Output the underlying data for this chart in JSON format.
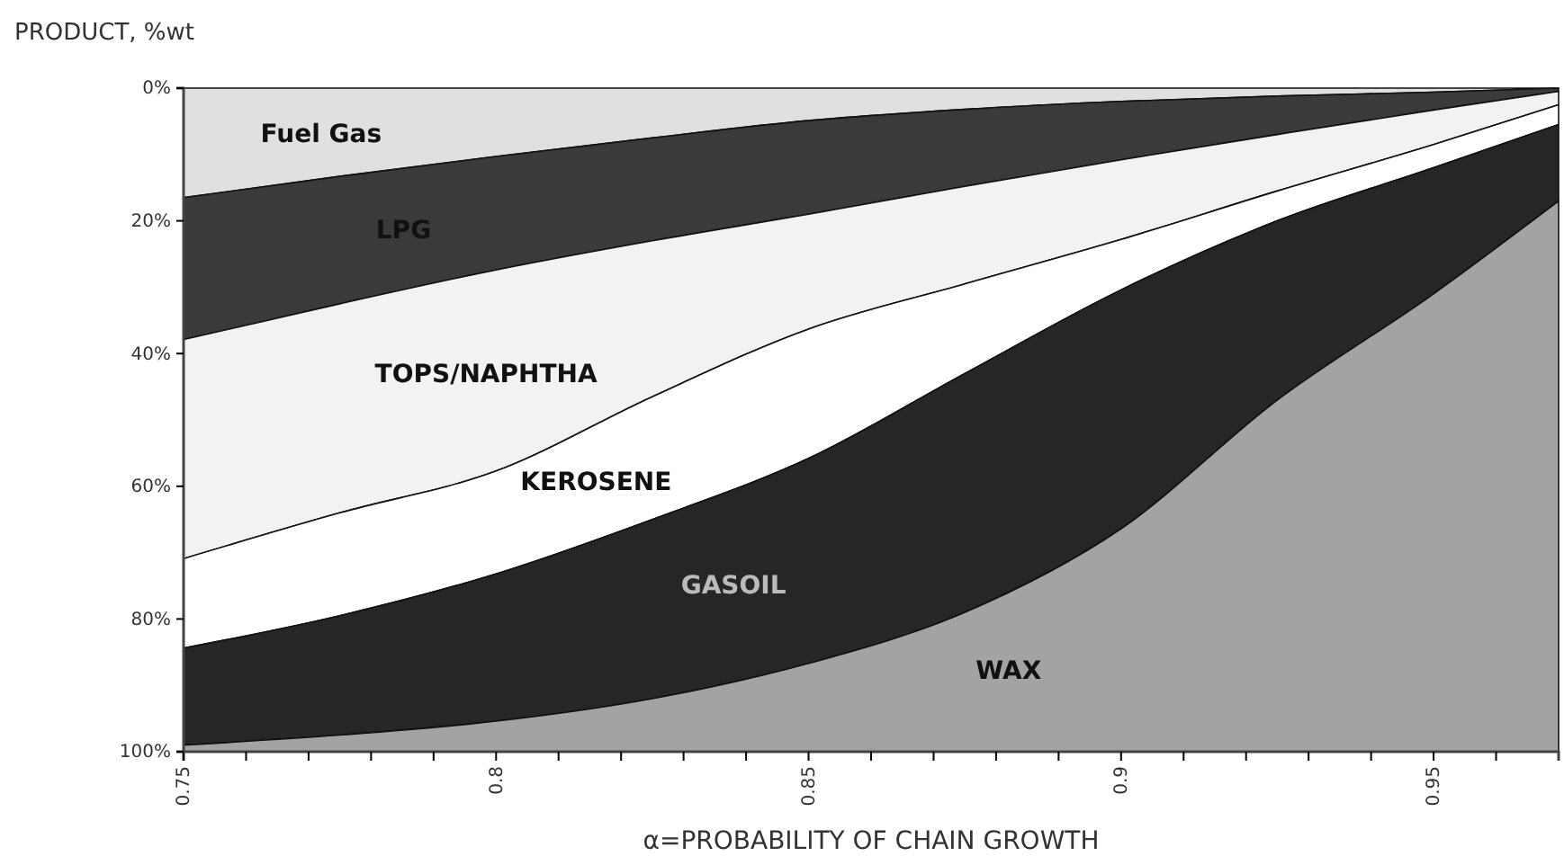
{
  "chart_data": {
    "type": "area",
    "stacked": true,
    "ylabel": "PRODUCT, %wt",
    "xlabel": "α=PROBABILITY OF CHAIN GROWTH",
    "x": [
      0.75,
      0.775,
      0.8,
      0.825,
      0.85,
      0.875,
      0.9,
      0.925,
      0.95,
      0.97
    ],
    "xlim": [
      0.75,
      0.97
    ],
    "xticks": [
      0.75,
      {
        "value": 0.76,
        "label": null
      },
      {
        "value": 0.77,
        "label": null
      },
      {
        "value": 0.78,
        "label": null
      },
      {
        "value": 0.79,
        "label": null
      },
      {
        "value": 0.8,
        "label": "0.8"
      },
      {
        "value": 0.81,
        "label": null
      },
      {
        "value": 0.82,
        "label": null
      },
      {
        "value": 0.83,
        "label": null
      },
      {
        "value": 0.84,
        "label": null
      },
      0.85,
      {
        "value": 0.86,
        "label": null
      },
      {
        "value": 0.87,
        "label": null
      },
      {
        "value": 0.88,
        "label": null
      },
      {
        "value": 0.89,
        "label": null
      },
      {
        "value": 0.9,
        "label": "0.9"
      },
      {
        "value": 0.91,
        "label": null
      },
      {
        "value": 0.92,
        "label": null
      },
      {
        "value": 0.93,
        "label": null
      },
      {
        "value": 0.94,
        "label": null
      },
      0.95,
      {
        "value": 0.96,
        "label": null
      }
    ],
    "ylim": [
      100,
      0
    ],
    "yticks": [
      {
        "value": 0,
        "label": "0%"
      },
      {
        "value": 20,
        "label": "20%"
      },
      {
        "value": 40,
        "label": "40%"
      },
      {
        "value": 60,
        "label": "60%"
      },
      {
        "value": 80,
        "label": "80%"
      },
      {
        "value": 100,
        "label": "100%"
      }
    ],
    "grid": false,
    "series": [
      {
        "name": "Fuel Gas",
        "color": "#e0e0e0",
        "values": [
          16.5,
          13.3,
          10.3,
          7.5,
          4.9,
          3.2,
          2.0,
          1.2,
          0.6,
          0
        ]
      },
      {
        "name": "LPG",
        "color": "#3a3a3a",
        "values": [
          21.4,
          19.2,
          17.1,
          15.5,
          14.1,
          11.6,
          8.8,
          5.8,
          2.7,
          0.5
        ]
      },
      {
        "name": "TOPS/NAPHTHA",
        "color": "#f2f2f2",
        "values": [
          33,
          31.5,
          30.3,
          23.5,
          17.3,
          14.7,
          12,
          8.5,
          5.2,
          2
        ]
      },
      {
        "name": "KEROSENE",
        "color": "#ffffff",
        "values": [
          13.5,
          15.5,
          15.5,
          18.5,
          19.5,
          13.5,
          7.6,
          4.5,
          3.5,
          3
        ]
      },
      {
        "name": "GASOIL",
        "color": "#262626",
        "values": [
          14.6,
          18,
          22.2,
          27,
          30.9,
          36,
          36,
          27,
          19,
          11.5
        ]
      },
      {
        "name": "WAX",
        "color": "#a3a3a3",
        "values": [
          1,
          2.5,
          4.6,
          8,
          13.3,
          21,
          33.6,
          53,
          69,
          83
        ]
      }
    ]
  }
}
